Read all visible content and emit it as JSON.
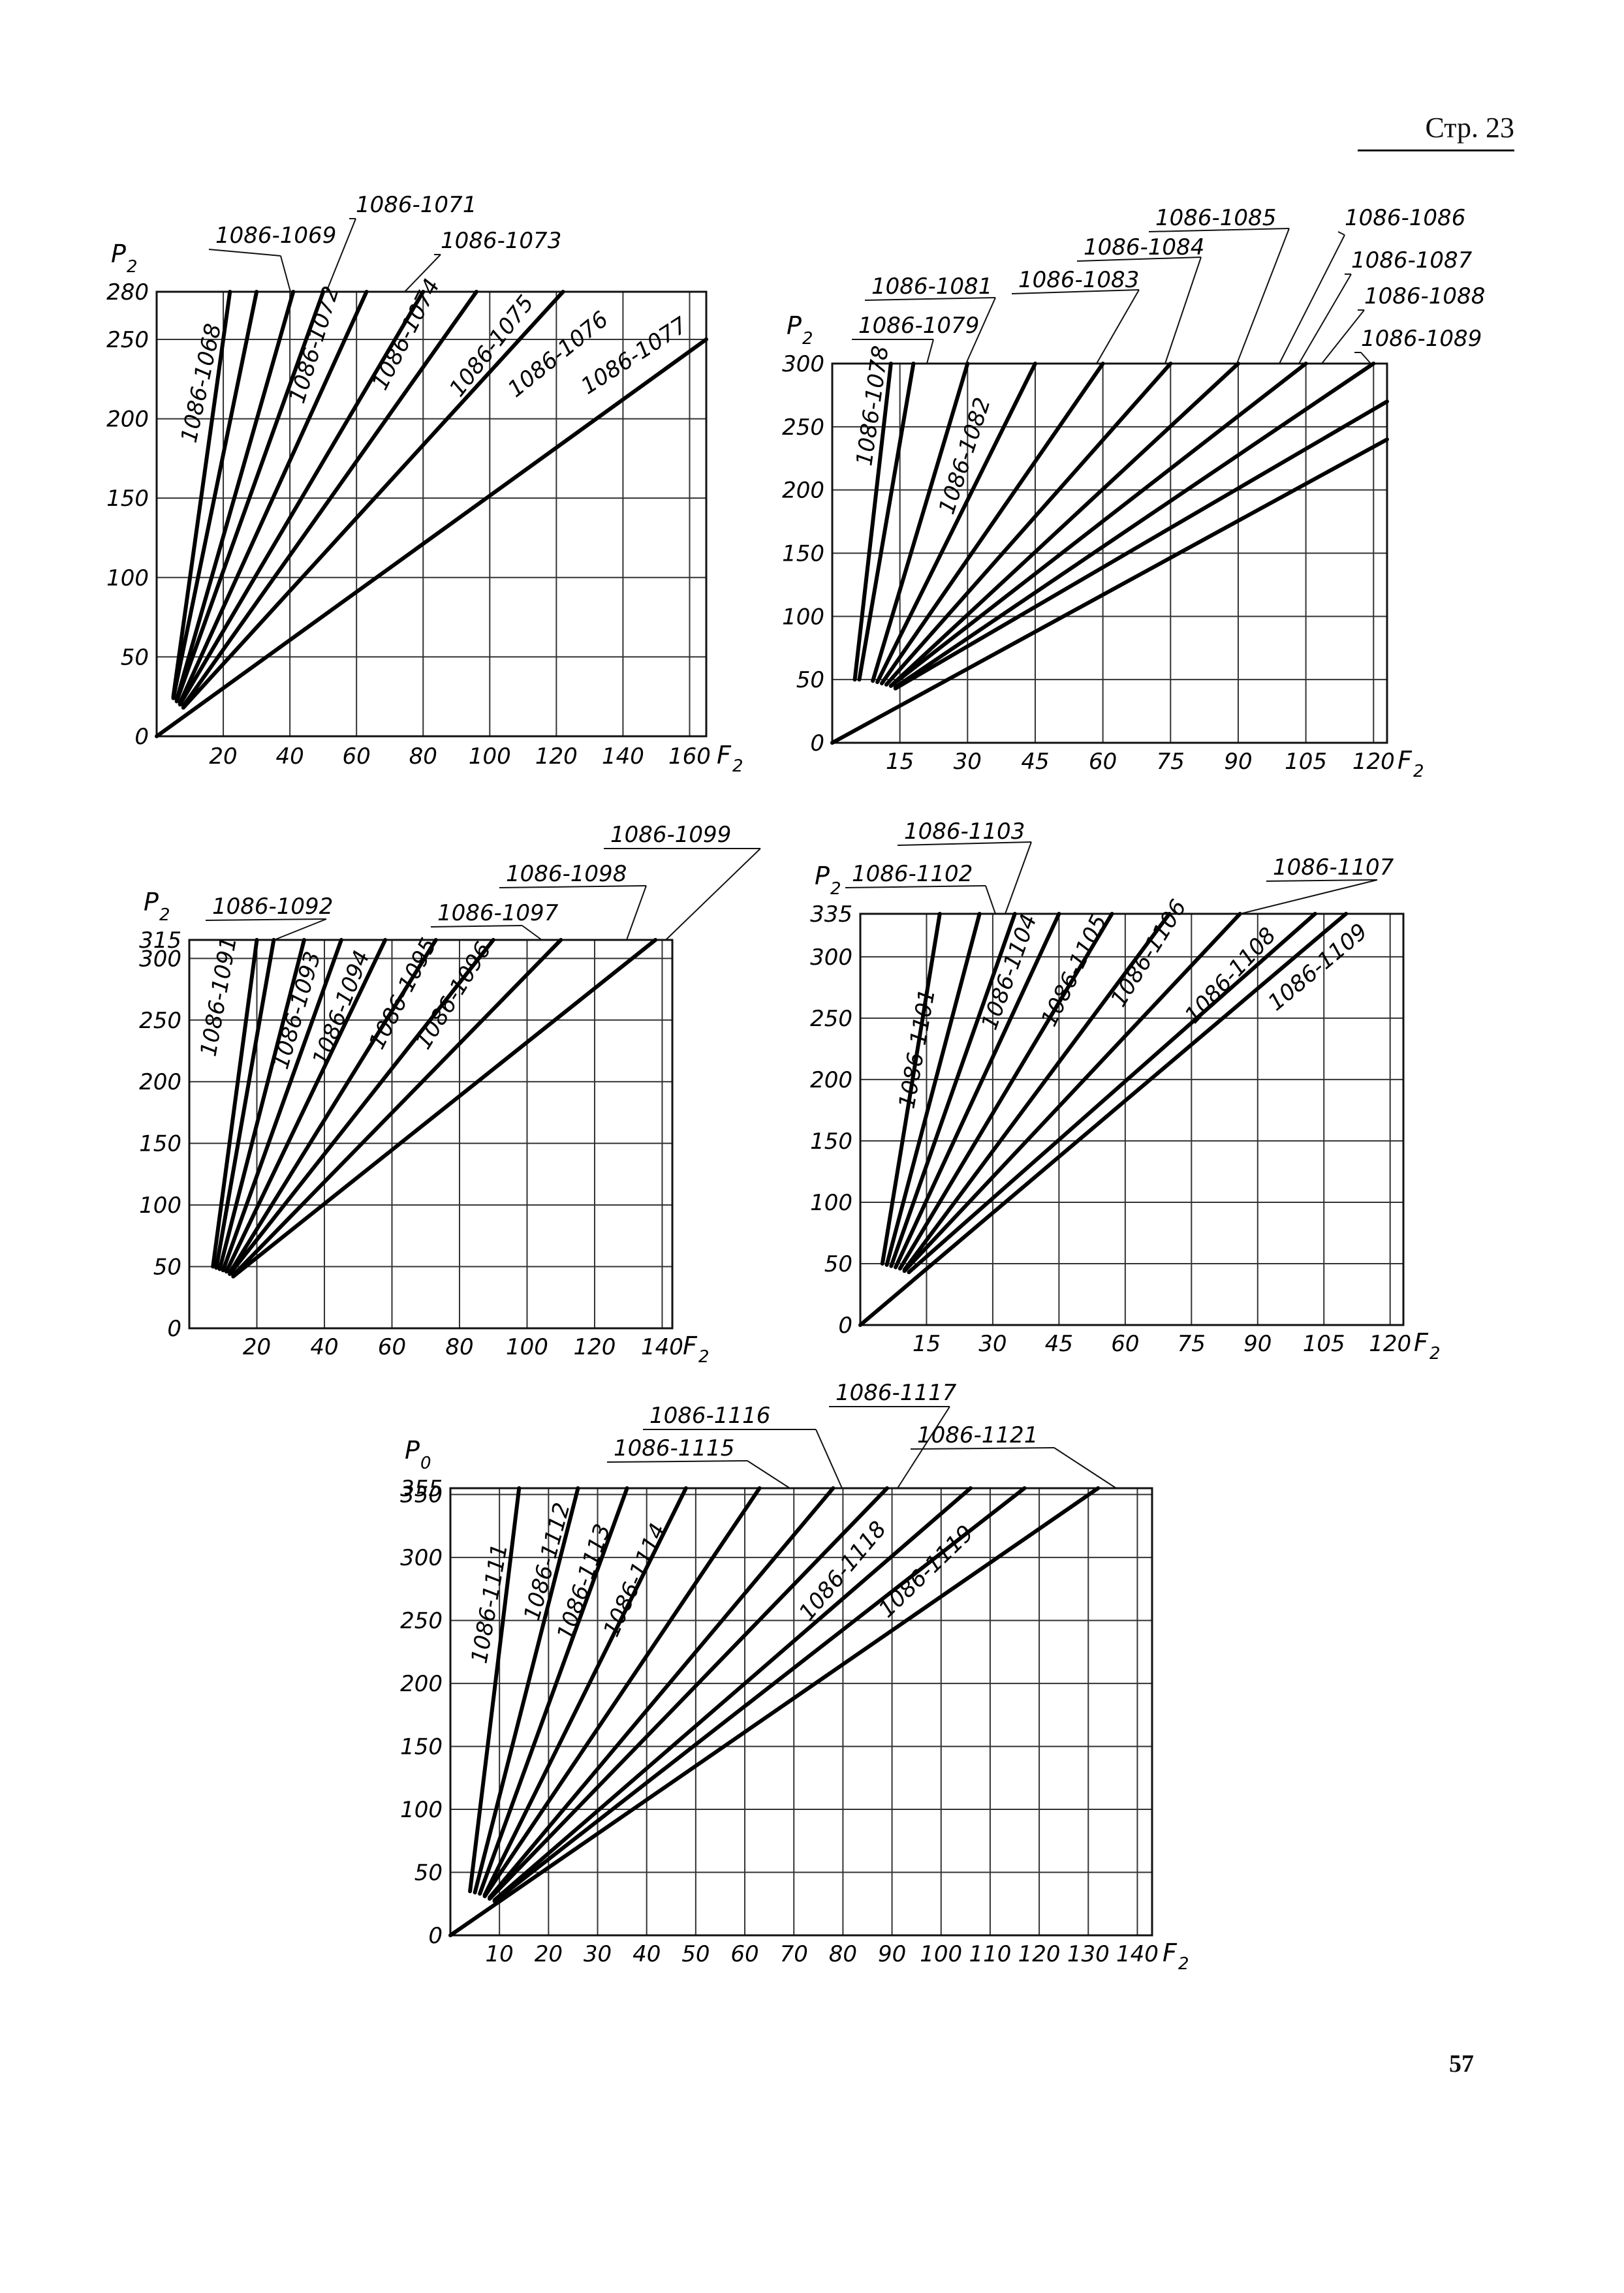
{
  "page": {
    "header": "Стр. 23",
    "number": "57"
  },
  "chart_data": [
    {
      "type": "line",
      "xlabel": "F",
      "xlabel_sub": "2",
      "ylabel": "P",
      "ylabel_sub": "2",
      "xlim": [
        0,
        165
      ],
      "ylim": [
        0,
        280
      ],
      "xticks": [
        {
          "v": 20,
          "label": "20"
        },
        {
          "v": 40,
          "label": "40"
        },
        {
          "v": 60,
          "label": "60"
        },
        {
          "v": 80,
          "label": "80"
        },
        {
          "v": 100,
          "label": "100"
        },
        {
          "v": 120,
          "label": "120"
        },
        {
          "v": 140,
          "label": "140"
        },
        {
          "v": 160,
          "label": "160"
        }
      ],
      "yticks": [
        {
          "v": 0,
          "label": "0"
        },
        {
          "v": 50,
          "label": "50"
        },
        {
          "v": 100,
          "label": "100"
        },
        {
          "v": 150,
          "label": "150"
        },
        {
          "v": 200,
          "label": "200"
        },
        {
          "v": 250,
          "label": "250"
        },
        {
          "v": 280,
          "label": "280"
        }
      ],
      "grid": true,
      "series": [
        {
          "name": "1086-1068",
          "from": [
            5,
            25
          ],
          "to": [
            22,
            280
          ]
        },
        {
          "name": "1086-1069",
          "from": [
            5,
            24
          ],
          "to": [
            30,
            280
          ]
        },
        {
          "name": "1086-1071",
          "from": [
            6,
            23
          ],
          "to": [
            41,
            280
          ]
        },
        {
          "name": "1086-1072",
          "from": [
            6,
            22
          ],
          "to": [
            50,
            280
          ]
        },
        {
          "name": "1086-1073",
          "from": [
            7,
            21
          ],
          "to": [
            63,
            280
          ]
        },
        {
          "name": "1086-1074",
          "from": [
            7,
            20
          ],
          "to": [
            80,
            280
          ]
        },
        {
          "name": "1086-1075",
          "from": [
            8,
            19
          ],
          "to": [
            96,
            280
          ]
        },
        {
          "name": "1086-1076",
          "from": [
            8,
            18
          ],
          "to": [
            122,
            280
          ]
        },
        {
          "name": "1086-1077",
          "from": [
            0,
            0
          ],
          "to": [
            165,
            250
          ]
        }
      ]
    },
    {
      "type": "line",
      "xlabel": "F",
      "xlabel_sub": "2",
      "ylabel": "P",
      "ylabel_sub": "2",
      "xlim": [
        0,
        123
      ],
      "ylim": [
        0,
        300
      ],
      "xticks": [
        {
          "v": 15,
          "label": "15"
        },
        {
          "v": 30,
          "label": "30"
        },
        {
          "v": 45,
          "label": "45"
        },
        {
          "v": 60,
          "label": "60"
        },
        {
          "v": 75,
          "label": "75"
        },
        {
          "v": 90,
          "label": "90"
        },
        {
          "v": 105,
          "label": "105"
        },
        {
          "v": 120,
          "label": "120"
        }
      ],
      "yticks": [
        {
          "v": 0,
          "label": "0"
        },
        {
          "v": 50,
          "label": "50"
        },
        {
          "v": 100,
          "label": "100"
        },
        {
          "v": 150,
          "label": "150"
        },
        {
          "v": 200,
          "label": "200"
        },
        {
          "v": 250,
          "label": "250"
        },
        {
          "v": 300,
          "label": "300"
        }
      ],
      "grid": true,
      "series": [
        {
          "name": "1086-1078",
          "from": [
            5,
            50
          ],
          "to": [
            13,
            300
          ]
        },
        {
          "name": "1086-1079",
          "from": [
            6,
            50
          ],
          "to": [
            18,
            300
          ]
        },
        {
          "name": "1086-1081",
          "from": [
            9,
            49
          ],
          "to": [
            30,
            300
          ]
        },
        {
          "name": "1086-1082",
          "from": [
            10,
            48
          ],
          "to": [
            45,
            300
          ]
        },
        {
          "name": "1086-1083",
          "from": [
            11,
            47
          ],
          "to": [
            60,
            300
          ]
        },
        {
          "name": "1086-1084",
          "from": [
            12,
            46
          ],
          "to": [
            75,
            300
          ]
        },
        {
          "name": "1086-1085",
          "from": [
            13,
            45
          ],
          "to": [
            90,
            300
          ]
        },
        {
          "name": "1086-1086",
          "from": [
            13,
            45
          ],
          "to": [
            105,
            300
          ]
        },
        {
          "name": "1086-1087",
          "from": [
            14,
            44
          ],
          "to": [
            120,
            300
          ]
        },
        {
          "name": "1086-1088",
          "from": [
            14,
            43
          ],
          "to": [
            123,
            270
          ]
        },
        {
          "name": "1086-1089",
          "from": [
            0,
            0
          ],
          "to": [
            123,
            240
          ]
        }
      ]
    },
    {
      "type": "line",
      "xlabel": "F",
      "xlabel_sub": "2",
      "ylabel": "P",
      "ylabel_sub": "2",
      "xlim": [
        0,
        143
      ],
      "ylim": [
        0,
        315
      ],
      "xticks": [
        {
          "v": 20,
          "label": "20"
        },
        {
          "v": 40,
          "label": "40"
        },
        {
          "v": 60,
          "label": "60"
        },
        {
          "v": 80,
          "label": "80"
        },
        {
          "v": 100,
          "label": "100"
        },
        {
          "v": 120,
          "label": "120"
        },
        {
          "v": 140,
          "label": "140"
        }
      ],
      "yticks": [
        {
          "v": 0,
          "label": "0"
        },
        {
          "v": 50,
          "label": "50"
        },
        {
          "v": 100,
          "label": "100"
        },
        {
          "v": 150,
          "label": "150"
        },
        {
          "v": 200,
          "label": "200"
        },
        {
          "v": 250,
          "label": "250"
        },
        {
          "v": 300,
          "label": "300"
        },
        {
          "v": 315,
          "label": "315"
        }
      ],
      "grid": true,
      "series": [
        {
          "name": "1086-1091",
          "from": [
            7,
            50
          ],
          "to": [
            20,
            315
          ]
        },
        {
          "name": "1086-1092",
          "from": [
            8,
            49
          ],
          "to": [
            25,
            315
          ]
        },
        {
          "name": "1086-1093",
          "from": [
            9,
            48
          ],
          "to": [
            34,
            315
          ]
        },
        {
          "name": "1086-1094",
          "from": [
            10,
            47
          ],
          "to": [
            45,
            315
          ]
        },
        {
          "name": "1086-1095",
          "from": [
            11,
            46
          ],
          "to": [
            58,
            315
          ]
        },
        {
          "name": "1086-1096",
          "from": [
            12,
            45
          ],
          "to": [
            73,
            315
          ]
        },
        {
          "name": "1086-1097",
          "from": [
            12,
            44
          ],
          "to": [
            90,
            315
          ]
        },
        {
          "name": "1086-1098",
          "from": [
            13,
            43
          ],
          "to": [
            110,
            315
          ]
        },
        {
          "name": "1086-1099",
          "from": [
            13,
            42
          ],
          "to": [
            138,
            315
          ]
        }
      ]
    },
    {
      "type": "line",
      "xlabel": "F",
      "xlabel_sub": "2",
      "ylabel": "P",
      "ylabel_sub": "2",
      "xlim": [
        0,
        123
      ],
      "ylim": [
        0,
        335
      ],
      "xticks": [
        {
          "v": 15,
          "label": "15"
        },
        {
          "v": 30,
          "label": "30"
        },
        {
          "v": 45,
          "label": "45"
        },
        {
          "v": 60,
          "label": "60"
        },
        {
          "v": 75,
          "label": "75"
        },
        {
          "v": 90,
          "label": "90"
        },
        {
          "v": 105,
          "label": "105"
        },
        {
          "v": 120,
          "label": "120"
        }
      ],
      "yticks": [
        {
          "v": 0,
          "label": "0"
        },
        {
          "v": 50,
          "label": "50"
        },
        {
          "v": 100,
          "label": "100"
        },
        {
          "v": 150,
          "label": "150"
        },
        {
          "v": 200,
          "label": "200"
        },
        {
          "v": 250,
          "label": "250"
        },
        {
          "v": 300,
          "label": "300"
        },
        {
          "v": 335,
          "label": "335"
        }
      ],
      "grid": true,
      "series": [
        {
          "name": "1086-1101",
          "from": [
            5,
            50
          ],
          "to": [
            18,
            335
          ]
        },
        {
          "name": "1086-1102",
          "from": [
            6,
            49
          ],
          "to": [
            27,
            335
          ]
        },
        {
          "name": "1086-1103",
          "from": [
            7,
            48
          ],
          "to": [
            35,
            335
          ]
        },
        {
          "name": "1086-1104",
          "from": [
            8,
            47
          ],
          "to": [
            45,
            335
          ]
        },
        {
          "name": "1086-1105",
          "from": [
            9,
            46
          ],
          "to": [
            57,
            335
          ]
        },
        {
          "name": "1086-1106",
          "from": [
            10,
            45
          ],
          "to": [
            70,
            335
          ]
        },
        {
          "name": "1086-1107",
          "from": [
            10,
            44
          ],
          "to": [
            86,
            335
          ]
        },
        {
          "name": "1086-1108",
          "from": [
            11,
            43
          ],
          "to": [
            103,
            335
          ]
        },
        {
          "name": "1086-1109",
          "from": [
            0,
            0
          ],
          "to": [
            110,
            335
          ]
        }
      ]
    },
    {
      "type": "line",
      "xlabel": "F",
      "xlabel_sub": "2",
      "ylabel": "P",
      "ylabel_sub": "0",
      "xlim": [
        0,
        143
      ],
      "ylim": [
        0,
        355
      ],
      "xticks": [
        {
          "v": 10,
          "label": "10"
        },
        {
          "v": 20,
          "label": "20"
        },
        {
          "v": 30,
          "label": "30"
        },
        {
          "v": 40,
          "label": "40"
        },
        {
          "v": 50,
          "label": "50"
        },
        {
          "v": 60,
          "label": "60"
        },
        {
          "v": 70,
          "label": "70"
        },
        {
          "v": 80,
          "label": "80"
        },
        {
          "v": 90,
          "label": "90"
        },
        {
          "v": 100,
          "label": "100"
        },
        {
          "v": 110,
          "label": "110"
        },
        {
          "v": 120,
          "label": "120"
        },
        {
          "v": 130,
          "label": "130"
        },
        {
          "v": 140,
          "label": "140"
        }
      ],
      "yticks": [
        {
          "v": 0,
          "label": "0"
        },
        {
          "v": 50,
          "label": "50"
        },
        {
          "v": 100,
          "label": "100"
        },
        {
          "v": 150,
          "label": "150"
        },
        {
          "v": 200,
          "label": "200"
        },
        {
          "v": 250,
          "label": "250"
        },
        {
          "v": 300,
          "label": "300"
        },
        {
          "v": 350,
          "label": "350"
        },
        {
          "v": 355,
          "label": "355"
        }
      ],
      "grid": true,
      "series": [
        {
          "name": "1086-1111",
          "from": [
            4,
            35
          ],
          "to": [
            14,
            355
          ]
        },
        {
          "name": "1086-1112",
          "from": [
            5,
            34
          ],
          "to": [
            26,
            355
          ]
        },
        {
          "name": "1086-1113",
          "from": [
            6,
            33
          ],
          "to": [
            36,
            355
          ]
        },
        {
          "name": "1086-1114",
          "from": [
            7,
            32
          ],
          "to": [
            48,
            355
          ]
        },
        {
          "name": "1086-1115",
          "from": [
            7,
            31
          ],
          "to": [
            63,
            355
          ]
        },
        {
          "name": "1086-1116",
          "from": [
            8,
            30
          ],
          "to": [
            78,
            355
          ]
        },
        {
          "name": "1086-1117",
          "from": [
            8,
            29
          ],
          "to": [
            89,
            355
          ]
        },
        {
          "name": "1086-1118",
          "from": [
            9,
            28
          ],
          "to": [
            106,
            355
          ]
        },
        {
          "name": "1086-1119",
          "from": [
            9,
            27
          ],
          "to": [
            117,
            355
          ]
        },
        {
          "name": "1086-1121",
          "from": [
            0,
            0
          ],
          "to": [
            132,
            355
          ]
        }
      ]
    }
  ]
}
